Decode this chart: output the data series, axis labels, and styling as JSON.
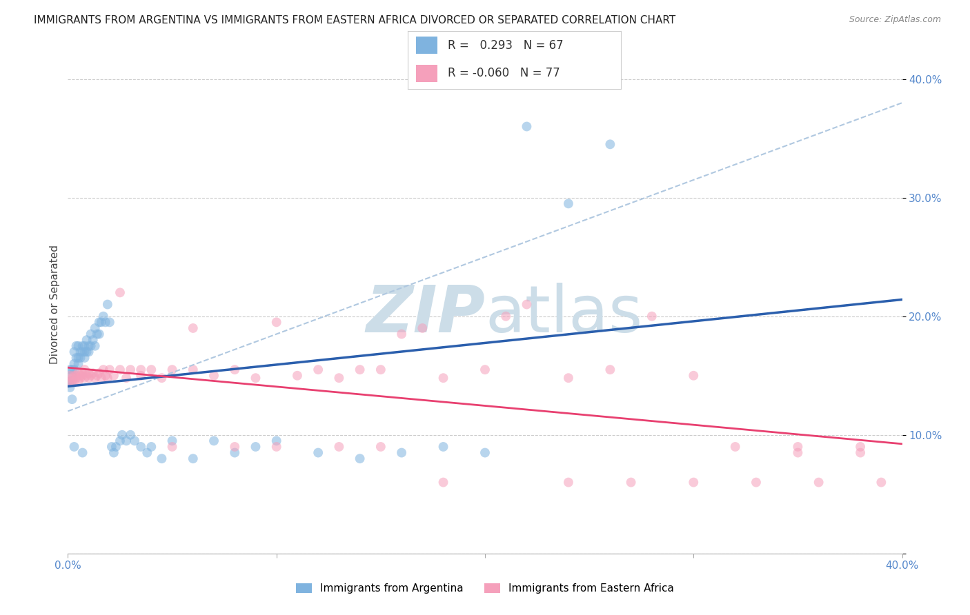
{
  "title": "IMMIGRANTS FROM ARGENTINA VS IMMIGRANTS FROM EASTERN AFRICA DIVORCED OR SEPARATED CORRELATION CHART",
  "source": "Source: ZipAtlas.com",
  "ylabel": "Divorced or Separated",
  "R_argentina": 0.293,
  "N_argentina": 67,
  "R_eastern_africa": -0.06,
  "N_eastern_africa": 77,
  "argentina_color": "#7fb3df",
  "eastern_africa_color": "#f5a0bb",
  "argentina_line_color": "#2b5fad",
  "eastern_africa_line_color": "#e84070",
  "dashed_line_color": "#b0c8e0",
  "watermark_color": "#ccdde8",
  "background_color": "#ffffff",
  "grid_color": "#cccccc",
  "axis_label_color": "#5588cc",
  "title_color": "#222222",
  "source_color": "#888888",
  "legend_text_color": "#333333",
  "xlim": [
    0.0,
    0.4
  ],
  "ylim": [
    0.0,
    0.42
  ],
  "arg_x": [
    0.001,
    0.001,
    0.001,
    0.002,
    0.002,
    0.002,
    0.002,
    0.003,
    0.003,
    0.003,
    0.003,
    0.004,
    0.004,
    0.005,
    0.005,
    0.005,
    0.006,
    0.006,
    0.007,
    0.007,
    0.007,
    0.008,
    0.008,
    0.008,
    0.009,
    0.009,
    0.01,
    0.01,
    0.011,
    0.011,
    0.012,
    0.013,
    0.013,
    0.014,
    0.015,
    0.015,
    0.016,
    0.017,
    0.018,
    0.019,
    0.02,
    0.021,
    0.022,
    0.023,
    0.025,
    0.026,
    0.028,
    0.03,
    0.032,
    0.035,
    0.038,
    0.04,
    0.045,
    0.05,
    0.06,
    0.07,
    0.08,
    0.09,
    0.1,
    0.12,
    0.14,
    0.16,
    0.18,
    0.2,
    0.22,
    0.24,
    0.26
  ],
  "arg_y": [
    0.145,
    0.155,
    0.14,
    0.155,
    0.145,
    0.15,
    0.13,
    0.17,
    0.16,
    0.155,
    0.09,
    0.175,
    0.165,
    0.175,
    0.16,
    0.165,
    0.17,
    0.165,
    0.175,
    0.17,
    0.085,
    0.175,
    0.17,
    0.165,
    0.18,
    0.17,
    0.175,
    0.17,
    0.185,
    0.175,
    0.18,
    0.19,
    0.175,
    0.185,
    0.195,
    0.185,
    0.195,
    0.2,
    0.195,
    0.21,
    0.195,
    0.09,
    0.085,
    0.09,
    0.095,
    0.1,
    0.095,
    0.1,
    0.095,
    0.09,
    0.085,
    0.09,
    0.08,
    0.095,
    0.08,
    0.095,
    0.085,
    0.09,
    0.095,
    0.085,
    0.08,
    0.085,
    0.09,
    0.085,
    0.36,
    0.295,
    0.345
  ],
  "ea_x": [
    0.001,
    0.001,
    0.002,
    0.002,
    0.003,
    0.003,
    0.004,
    0.004,
    0.005,
    0.005,
    0.006,
    0.006,
    0.007,
    0.007,
    0.008,
    0.008,
    0.009,
    0.01,
    0.01,
    0.011,
    0.012,
    0.013,
    0.014,
    0.015,
    0.016,
    0.017,
    0.018,
    0.019,
    0.02,
    0.022,
    0.025,
    0.028,
    0.03,
    0.035,
    0.04,
    0.045,
    0.05,
    0.06,
    0.07,
    0.08,
    0.09,
    0.1,
    0.11,
    0.12,
    0.13,
    0.14,
    0.15,
    0.16,
    0.17,
    0.18,
    0.2,
    0.22,
    0.24,
    0.26,
    0.28,
    0.3,
    0.32,
    0.35,
    0.38,
    0.025,
    0.035,
    0.05,
    0.06,
    0.08,
    0.1,
    0.13,
    0.15,
    0.18,
    0.21,
    0.24,
    0.27,
    0.3,
    0.33,
    0.36,
    0.39,
    0.35,
    0.38
  ],
  "ea_y": [
    0.145,
    0.15,
    0.145,
    0.148,
    0.15,
    0.145,
    0.148,
    0.15,
    0.152,
    0.145,
    0.15,
    0.148,
    0.152,
    0.15,
    0.148,
    0.155,
    0.15,
    0.152,
    0.148,
    0.15,
    0.152,
    0.148,
    0.15,
    0.152,
    0.148,
    0.155,
    0.15,
    0.148,
    0.155,
    0.15,
    0.155,
    0.148,
    0.155,
    0.15,
    0.155,
    0.148,
    0.155,
    0.19,
    0.15,
    0.155,
    0.148,
    0.195,
    0.15,
    0.155,
    0.148,
    0.155,
    0.155,
    0.185,
    0.19,
    0.148,
    0.155,
    0.21,
    0.148,
    0.155,
    0.2,
    0.15,
    0.09,
    0.09,
    0.09,
    0.22,
    0.155,
    0.09,
    0.155,
    0.09,
    0.09,
    0.09,
    0.09,
    0.06,
    0.2,
    0.06,
    0.06,
    0.06,
    0.06,
    0.06,
    0.06,
    0.085,
    0.085
  ]
}
